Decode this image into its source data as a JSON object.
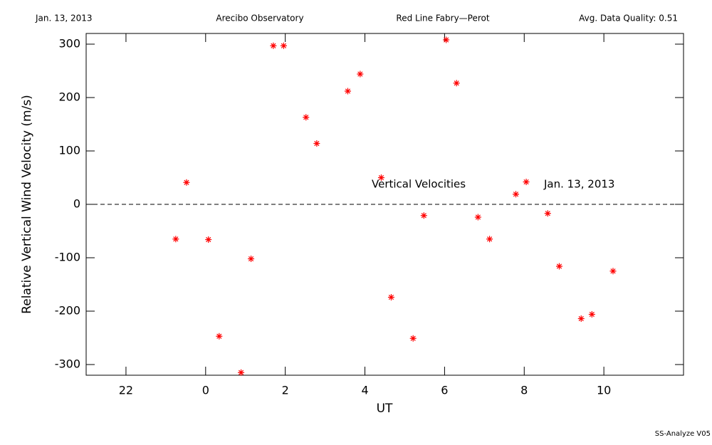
{
  "chart_data": {
    "type": "scatter",
    "header": [
      "Jan. 13, 2013",
      "Arecibo Observatory",
      "Red Line Fabry—Perot",
      "Avg. Data Quality: 0.51"
    ],
    "footer": "SS-Analyze V05",
    "xlabel": "UT",
    "ylabel": "Relative Vertical Wind Velocity (m/s)",
    "annotations": [
      "Vertical Velocities",
      "Jan. 13, 2013"
    ],
    "xlim": [
      -3,
      12
    ],
    "ylim": [
      -320,
      320
    ],
    "xticks": [
      {
        "value": -2,
        "label": "22"
      },
      0,
      2,
      4,
      6,
      8,
      10
    ],
    "yticks": [
      -300,
      -200,
      -100,
      0,
      100,
      200,
      300
    ],
    "hline": 0,
    "color": "#ff0000",
    "x": [
      -0.75,
      -0.48,
      0.07,
      0.34,
      0.89,
      1.14,
      1.7,
      1.96,
      2.52,
      2.79,
      3.57,
      3.88,
      4.41,
      4.66,
      5.21,
      5.48,
      6.04,
      6.3,
      6.84,
      7.13,
      7.79,
      8.05,
      8.59,
      8.88,
      9.43,
      9.7,
      10.23
    ],
    "values": [
      -65,
      41,
      -66,
      -247,
      -315,
      -102,
      297,
      297,
      163,
      114,
      212,
      244,
      50,
      -174,
      -251,
      -21,
      308,
      227,
      -24,
      -65,
      19,
      42,
      -17,
      -116,
      -214,
      -206,
      -125
    ]
  }
}
